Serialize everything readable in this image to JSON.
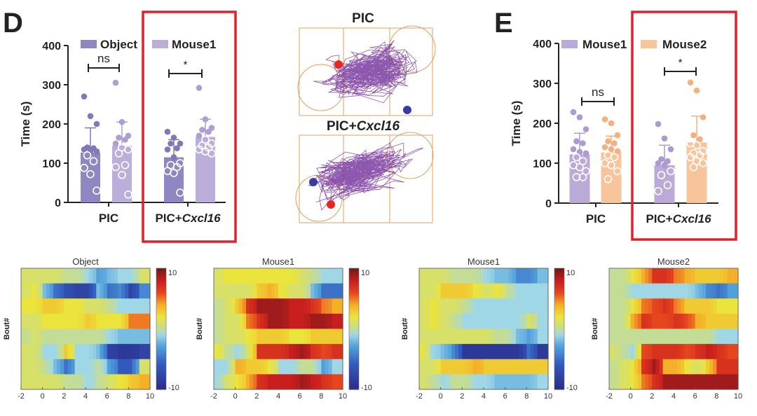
{
  "panels": {
    "d": "D",
    "e": "E"
  },
  "chart_data": [
    {
      "type": "bar",
      "panel": "D",
      "ylabel": "Time (s)",
      "ylim": [
        0,
        400
      ],
      "yticks": [
        "0",
        "100",
        "200",
        "300",
        "400"
      ],
      "categories": [
        {
          "prefix": "PIC",
          "italic": ""
        },
        {
          "prefix": "PIC+",
          "italic": "Cxcl16"
        }
      ],
      "legend": [
        "Object",
        "Mouse1"
      ],
      "colors": [
        "#8f87c2",
        "#bbaedb"
      ],
      "dot_colors": [
        "#8179b6",
        "#ad9fd2"
      ],
      "series": [
        {
          "name": "Object",
          "means": [
            127,
            115
          ],
          "err_top": [
            190,
            160
          ],
          "points": [
            [
              270,
              220,
              200,
              140,
              138,
              135,
              130,
              130,
              120,
              105,
              88,
              72,
              30
            ],
            [
              180,
              165,
              150,
              150,
              138,
              135,
              115,
              100,
              95,
              90,
              80,
              75,
              25
            ]
          ]
        },
        {
          "name": "Mouse1",
          "means": [
            145,
            167
          ],
          "err_top": [
            205,
            212
          ],
          "points": [
            [
              305,
              205,
              170,
              165,
              160,
              150,
              140,
              135,
              125,
              95,
              90,
              70,
              20
            ],
            [
              292,
              212,
              190,
              185,
              180,
              170,
              160,
              150,
              145,
              140,
              135,
              130,
              125
            ]
          ]
        }
      ],
      "significance": [
        "ns",
        "*"
      ],
      "highlighted_group": "PIC+Cxcl16"
    },
    {
      "type": "bar",
      "panel": "E",
      "ylabel": "Time (s)",
      "ylim": [
        0,
        400
      ],
      "yticks": [
        "0",
        "100",
        "200",
        "300",
        "400"
      ],
      "categories": [
        {
          "prefix": "PIC",
          "italic": ""
        },
        {
          "prefix": "PIC+",
          "italic": "Cxcl16"
        }
      ],
      "legend": [
        "Mouse1",
        "Mouse2"
      ],
      "colors": [
        "#bba9d8",
        "#f8c49b"
      ],
      "dot_colors": [
        "#ad9bd0",
        "#f3b17f"
      ],
      "series": [
        {
          "name": "Mouse1",
          "means": [
            122,
            95
          ],
          "err_top": [
            175,
            145
          ],
          "points": [
            [
              228,
              215,
              185,
              155,
              150,
              135,
              128,
              125,
              115,
              105,
              95,
              90,
              80,
              65,
              65
            ],
            [
              198,
              162,
              135,
              110,
              105,
              100,
              95,
              80,
              70,
              45,
              30
            ]
          ]
        },
        {
          "name": "Mouse2",
          "means": [
            127,
            152
          ],
          "err_top": [
            168,
            218
          ],
          "points": [
            [
              210,
              200,
              170,
              155,
              150,
              140,
              135,
              130,
              120,
              115,
              100,
              95,
              80,
              60
            ],
            [
              302,
              282,
              215,
              170,
              160,
              150,
              145,
              130,
              125,
              120,
              115,
              105,
              100,
              90
            ]
          ]
        }
      ],
      "significance": [
        "ns",
        "*"
      ],
      "highlighted_group": "PIC+Cxcl16"
    },
    {
      "type": "heatmap",
      "title": "Object",
      "ylabel": "Bout#",
      "xlim": [
        -2,
        10
      ],
      "xticks": [
        "-2",
        "0",
        "2",
        "4",
        "6",
        "8",
        "10"
      ],
      "colorbar": [
        "10",
        "-10"
      ],
      "clim": [
        -10,
        10
      ],
      "rows": [
        [
          1,
          1,
          1,
          1,
          0,
          0,
          -1,
          -3,
          -2,
          -1,
          -1,
          1
        ],
        [
          1,
          2,
          -2,
          -5,
          -7,
          -8,
          -8,
          -2,
          -5,
          -4,
          -8,
          -4
        ],
        [
          2,
          2,
          3,
          3,
          2,
          2,
          1,
          1,
          0,
          -1,
          -1,
          -1
        ],
        [
          1,
          1,
          2,
          2,
          2,
          2,
          3,
          2,
          2,
          2,
          5,
          5
        ],
        [
          0,
          1,
          0,
          0,
          0,
          0,
          0,
          0,
          -1,
          -2,
          -2,
          -2
        ],
        [
          1,
          1,
          -1,
          -1,
          3,
          -1,
          -1,
          -2,
          -8,
          -9,
          -9,
          -8
        ],
        [
          1,
          1,
          0,
          -2,
          -5,
          -1,
          -1,
          0,
          -3,
          -6,
          -6,
          1
        ],
        [
          1,
          1,
          1,
          1,
          0,
          0,
          -1,
          0,
          1,
          2,
          3,
          4
        ]
      ]
    },
    {
      "type": "heatmap",
      "title": "Mouse1",
      "ylabel": "Bout#",
      "xlim": [
        -2,
        10
      ],
      "xticks": [
        "-2",
        "0",
        "2",
        "4",
        "6",
        "8",
        "10"
      ],
      "colorbar": [
        "10",
        "-10"
      ],
      "clim": [
        -10,
        10
      ],
      "rows": [
        [
          1,
          2,
          2,
          2,
          2,
          2,
          2,
          2,
          1,
          0,
          -1,
          -1
        ],
        [
          1,
          1,
          1,
          1,
          3,
          4,
          2,
          1,
          1,
          -2,
          -5,
          -5
        ],
        [
          0,
          1,
          3,
          7,
          9,
          9,
          9,
          8,
          8,
          7,
          5,
          4
        ],
        [
          0,
          1,
          1,
          5,
          7,
          9,
          9,
          8,
          8,
          9,
          9,
          8
        ],
        [
          0,
          1,
          1,
          2,
          3,
          3,
          3,
          2,
          2,
          3,
          3,
          3
        ],
        [
          2,
          0,
          -1,
          1,
          7,
          7,
          7,
          8,
          9,
          7,
          6,
          7
        ],
        [
          -1,
          -1,
          4,
          3,
          3,
          2,
          -1,
          -1,
          0,
          0,
          -3,
          -1
        ],
        [
          -1,
          1,
          2,
          4,
          7,
          8,
          8,
          8,
          9,
          8,
          7,
          6
        ]
      ]
    },
    {
      "type": "heatmap",
      "title": "Mouse1",
      "ylabel": "Bout#",
      "xlim": [
        -2,
        10
      ],
      "xticks": [
        "-2",
        "0",
        "2",
        "4",
        "6",
        "8",
        "10"
      ],
      "colorbar": [
        "10",
        "-10"
      ],
      "clim": [
        -10,
        10
      ],
      "rows": [
        [
          1,
          1,
          1,
          0,
          0,
          0,
          -1,
          -2,
          -2,
          -4,
          -4,
          -2
        ],
        [
          1,
          1,
          3,
          3,
          3,
          2,
          1,
          2,
          0,
          -1,
          -1,
          -1
        ],
        [
          1,
          2,
          1,
          1,
          0,
          -1,
          -1,
          -1,
          -1,
          -1,
          -1,
          -1
        ],
        [
          1,
          2,
          1,
          0,
          -1,
          -1,
          -1,
          -1,
          -1,
          -1,
          1,
          -1
        ],
        [
          1,
          1,
          1,
          1,
          1,
          1,
          1,
          0,
          0,
          -2,
          -3,
          -1
        ],
        [
          2,
          -1,
          -2,
          -4,
          -9,
          -9,
          -9,
          -9,
          -9,
          -9,
          -5,
          -9
        ],
        [
          1,
          1,
          3,
          3,
          3,
          4,
          3,
          3,
          3,
          3,
          3,
          3
        ],
        [
          1,
          0,
          -1,
          0,
          0,
          -1,
          -1,
          -2,
          -2,
          -2,
          -2,
          -1
        ]
      ]
    },
    {
      "type": "heatmap",
      "title": "Mouse2",
      "ylabel": "Bout#",
      "xlim": [
        -2,
        10
      ],
      "xticks": [
        "-2",
        "0",
        "2",
        "4",
        "6",
        "8",
        "10"
      ],
      "colorbar": null,
      "clim": [
        -10,
        10
      ],
      "rows": [
        [
          0,
          0,
          2,
          4,
          7,
          7,
          5,
          4,
          3,
          3,
          3,
          4
        ],
        [
          0,
          0,
          -1,
          -1,
          -1,
          -1,
          -1,
          -1,
          -2,
          -4,
          -5,
          -3
        ],
        [
          0,
          0,
          2,
          5,
          6,
          7,
          5,
          3,
          3,
          3,
          2,
          2
        ],
        [
          0,
          0,
          4,
          7,
          6,
          6,
          7,
          6,
          4,
          3,
          3,
          3
        ],
        [
          0,
          0,
          0,
          0,
          0,
          0,
          0,
          0,
          0,
          0,
          -1,
          -1
        ],
        [
          1,
          0,
          -1,
          6,
          7,
          7,
          7,
          6,
          7,
          8,
          7,
          6
        ],
        [
          0,
          1,
          2,
          7,
          9,
          4,
          4,
          2,
          1,
          3,
          7,
          7
        ],
        [
          0,
          1,
          2,
          5,
          7,
          9,
          9,
          9,
          9,
          9,
          9,
          9
        ]
      ]
    }
  ],
  "tracking": {
    "top_title": "PIC",
    "bottom_title_prefix": "PIC+",
    "bottom_title_italic": "Cxcl16",
    "track_color": "#7a3aa0",
    "arena_color": "#e0a060"
  },
  "highlight_color": "#e0202a"
}
